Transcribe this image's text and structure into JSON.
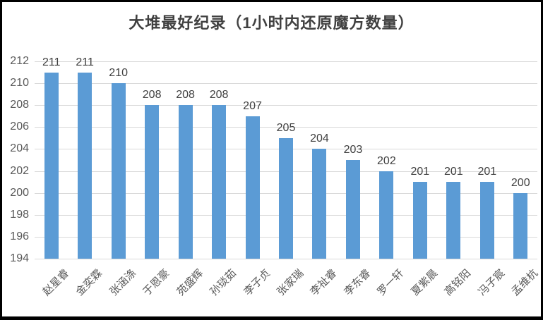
{
  "chart_data": {
    "type": "bar",
    "title": "大堆最好纪录（1小时内还原魔方数量）",
    "categories": [
      "赵星睿",
      "金奕霖",
      "张涵涤",
      "于恩豪",
      "苑盛辉",
      "孙琰茹",
      "李子贞",
      "张家瑞",
      "李祉睿",
      "李东睿",
      "罗一轩",
      "夏紫晨",
      "高铭阳",
      "冯子宸",
      "孟维杭"
    ],
    "values": [
      211,
      211,
      210,
      208,
      208,
      208,
      207,
      205,
      204,
      203,
      202,
      201,
      201,
      201,
      200
    ],
    "xlabel": "",
    "ylabel": "",
    "ylim": [
      194,
      212
    ],
    "yticks": [
      194,
      196,
      198,
      200,
      202,
      204,
      206,
      208,
      210,
      212
    ],
    "grid": true,
    "legend": false,
    "data_labels": true
  },
  "colors": {
    "bar": "#5B9BD5",
    "gridline": "#D9D9D9",
    "axis_text": "#595959",
    "data_label_text": "#404040",
    "title_text": "#404040",
    "frame_border": "#000000",
    "background": "#FFFFFF"
  }
}
